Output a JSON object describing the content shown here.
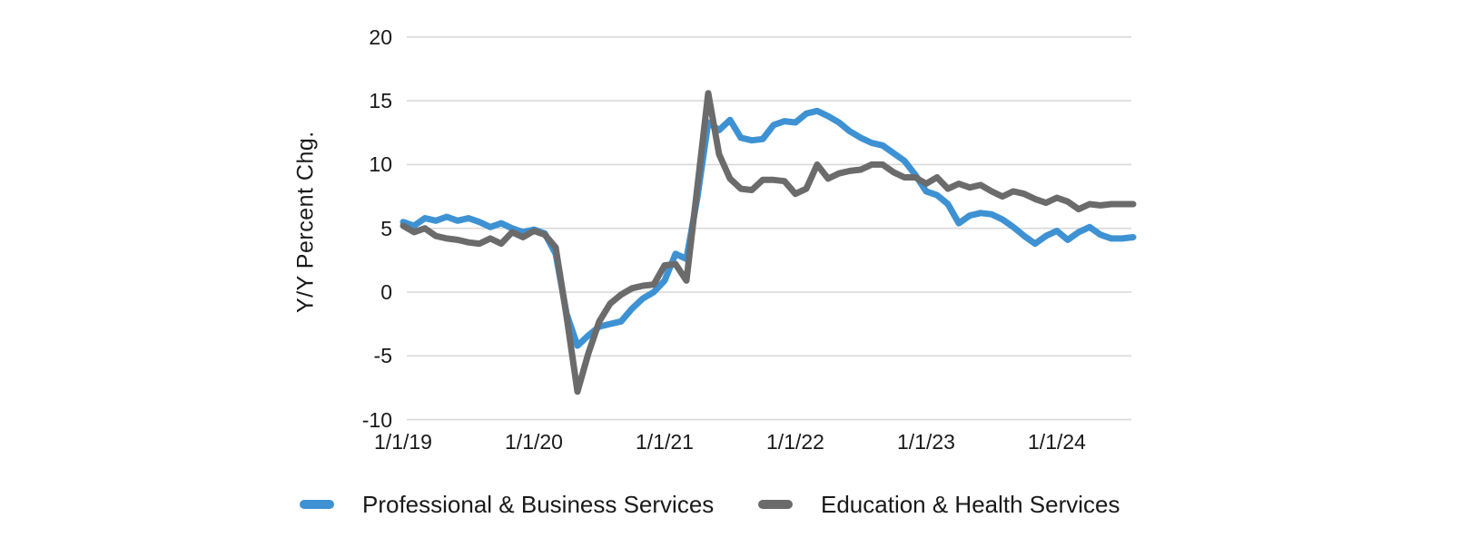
{
  "colors": {
    "background": "#ffffff",
    "gridline": "#d9d9d9",
    "text": "#1a1a1a",
    "series_blue": "#3e92d3",
    "series_gray": "#6b6b6b"
  },
  "chart_data": {
    "type": "line",
    "title": "",
    "xlabel": "",
    "ylabel": "Y/Y Percent Chg.",
    "ylim": [
      -10,
      20
    ],
    "y_ticks": [
      20,
      15,
      10,
      5,
      0,
      -5,
      -10
    ],
    "y_tick_labels": [
      "20",
      "15",
      "10",
      "5",
      "0",
      "-5",
      "-10"
    ],
    "x_ticks": [
      {
        "month_index": 0,
        "label": "1/1/19"
      },
      {
        "month_index": 12,
        "label": "1/1/20"
      },
      {
        "month_index": 24,
        "label": "1/1/21"
      },
      {
        "month_index": 36,
        "label": "1/1/22"
      },
      {
        "month_index": 48,
        "label": "1/1/23"
      },
      {
        "month_index": 60,
        "label": "1/1/24"
      }
    ],
    "grid": "horizontal",
    "legend_position": "bottom",
    "x": [
      "2019-01",
      "2019-02",
      "2019-03",
      "2019-04",
      "2019-05",
      "2019-06",
      "2019-07",
      "2019-08",
      "2019-09",
      "2019-10",
      "2019-11",
      "2019-12",
      "2020-01",
      "2020-02",
      "2020-03",
      "2020-04",
      "2020-05",
      "2020-06",
      "2020-07",
      "2020-08",
      "2020-09",
      "2020-10",
      "2020-11",
      "2020-12",
      "2021-01",
      "2021-02",
      "2021-03",
      "2021-04",
      "2021-05",
      "2021-06",
      "2021-07",
      "2021-08",
      "2021-09",
      "2021-10",
      "2021-11",
      "2021-12",
      "2022-01",
      "2022-02",
      "2022-03",
      "2022-04",
      "2022-05",
      "2022-06",
      "2022-07",
      "2022-08",
      "2022-09",
      "2022-10",
      "2022-11",
      "2022-12",
      "2023-01",
      "2023-02",
      "2023-03",
      "2023-04",
      "2023-05",
      "2023-06",
      "2023-07",
      "2023-08",
      "2023-09",
      "2023-10",
      "2023-11",
      "2023-12",
      "2024-01",
      "2024-02",
      "2024-03",
      "2024-04",
      "2024-05",
      "2024-06",
      "2024-07",
      "2024-08"
    ],
    "series": [
      {
        "id": "professional-business-services",
        "name": "Professional & Business Services",
        "color": "#3e92d3",
        "values": [
          5.5,
          5.2,
          5.8,
          5.6,
          5.9,
          5.6,
          5.8,
          5.5,
          5.1,
          5.4,
          5.0,
          4.7,
          4.9,
          4.6,
          3.0,
          -1.7,
          -4.2,
          -3.4,
          -2.7,
          -2.5,
          -2.3,
          -1.3,
          -0.5,
          0.0,
          0.9,
          3.0,
          2.6,
          7.4,
          13.3,
          12.7,
          13.5,
          12.1,
          11.9,
          12.0,
          13.1,
          13.4,
          13.3,
          14.0,
          14.2,
          13.8,
          13.3,
          12.6,
          12.1,
          11.7,
          11.5,
          10.9,
          10.3,
          9.2,
          7.9,
          7.6,
          6.9,
          5.4,
          6.0,
          6.2,
          6.1,
          5.7,
          5.1,
          4.4,
          3.8,
          4.4,
          4.8,
          4.1,
          4.7,
          5.1,
          4.5,
          4.2,
          4.2,
          4.3
        ]
      },
      {
        "id": "education-health-services",
        "name": "Education & Health Services",
        "color": "#6b6b6b",
        "values": [
          5.2,
          4.7,
          5.0,
          4.4,
          4.2,
          4.1,
          3.9,
          3.8,
          4.2,
          3.8,
          4.7,
          4.3,
          4.8,
          4.5,
          3.5,
          -1.9,
          -7.8,
          -4.8,
          -2.3,
          -0.9,
          -0.2,
          0.3,
          0.5,
          0.6,
          2.1,
          2.2,
          0.9,
          8.2,
          15.6,
          10.8,
          8.9,
          8.1,
          8.0,
          8.8,
          8.8,
          8.7,
          7.7,
          8.1,
          10.0,
          8.9,
          9.3,
          9.5,
          9.6,
          10.0,
          10.0,
          9.4,
          9.0,
          9.0,
          8.5,
          9.0,
          8.1,
          8.5,
          8.2,
          8.4,
          7.9,
          7.5,
          7.9,
          7.7,
          7.3,
          7.0,
          7.4,
          7.1,
          6.5,
          6.9,
          6.8,
          6.9,
          6.9,
          6.9
        ]
      }
    ]
  }
}
